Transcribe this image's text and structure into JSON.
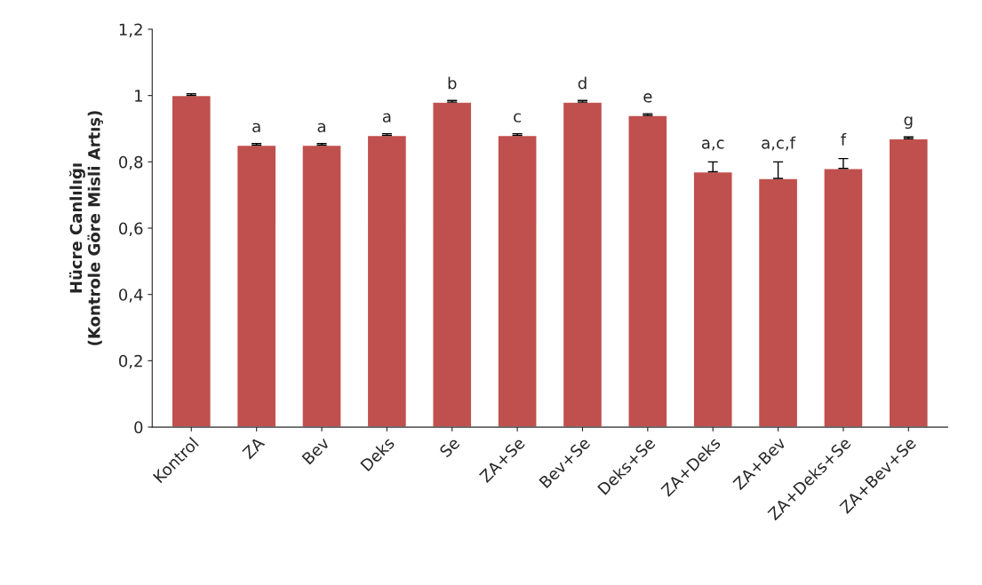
{
  "chart_data": {
    "type": "bar",
    "ylabel": "Hücre Canlılığı\n(Kontrole Göre Misli Artış)",
    "categories": [
      "Kontrol",
      "ZA",
      "Bev",
      "Deks",
      "Se",
      "ZA+Se",
      "Bev+Se",
      "Deks+Se",
      "ZA+Deks",
      "ZA+Bev",
      "ZA+Deks+Se",
      "ZA+Bev+Se"
    ],
    "values": [
      1.0,
      0.85,
      0.85,
      0.88,
      0.98,
      0.88,
      0.98,
      0.94,
      0.77,
      0.75,
      0.78,
      0.87
    ],
    "errors": [
      0.005,
      0.005,
      0.005,
      0.005,
      0.005,
      0.005,
      0.005,
      0.005,
      0.03,
      0.05,
      0.03,
      0.005
    ],
    "color": "#c0504d",
    "ylim": [
      0,
      1.2
    ],
    "yticks": [
      0,
      {
        "value": 0.2,
        "label": "0,2"
      },
      {
        "value": 0.4,
        "label": "0,4"
      },
      {
        "value": 0.6,
        "label": "0,6"
      },
      {
        "value": 0.8,
        "label": "0,8"
      },
      1,
      {
        "value": 1.2,
        "label": "1,2"
      }
    ],
    "annotations": [
      {
        "text": "a",
        "x": "ZA",
        "y": 0.85
      },
      {
        "text": "a",
        "x": "Bev",
        "y": 0.85
      },
      {
        "text": "a",
        "x": "Deks",
        "y": 0.88
      },
      {
        "text": "b",
        "x": "Se",
        "y": 0.98
      },
      {
        "text": "c",
        "x": "ZA+Se",
        "y": 0.88
      },
      {
        "text": "d",
        "x": "Bev+Se",
        "y": 0.98
      },
      {
        "text": "e",
        "x": "Deks+Se",
        "y": 0.94
      },
      {
        "text": "a,c",
        "x": "ZA+Deks",
        "y": 0.8
      },
      {
        "text": "a,c,f",
        "x": "ZA+Bev",
        "y": 0.8
      },
      {
        "text": "f",
        "x": "ZA+Deks+Se",
        "y": 0.81
      },
      {
        "text": "g",
        "x": "ZA+Bev+Se",
        "y": 0.87
      }
    ],
    "grid": false
  }
}
